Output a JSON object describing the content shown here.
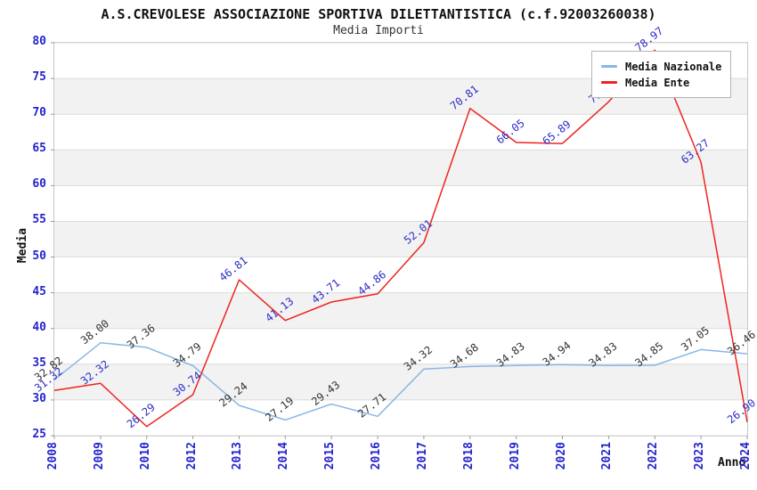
{
  "header": {
    "title": "A.S.CREVOLESE ASSOCIAZIONE SPORTIVA DILETTANTISTICA (c.f.92003260038)",
    "subtitle": "Media Importi"
  },
  "chart_data": {
    "type": "line",
    "title": "A.S.CREVOLESE ASSOCIAZIONE SPORTIVA DILETTANTISTICA (c.f.92003260038)",
    "subtitle": "Media Importi",
    "xlabel": "Anno",
    "ylabel": "Media",
    "ylim": [
      25,
      80
    ],
    "ytick_step": 5,
    "yticks": [
      25,
      30,
      35,
      40,
      45,
      50,
      55,
      60,
      65,
      70,
      75,
      80
    ],
    "grid": "horizontal-bands-alternating",
    "legend_position": "top-right",
    "categories": [
      "2008",
      "2009",
      "2010",
      "2012",
      "2013",
      "2014",
      "2015",
      "2016",
      "2017",
      "2018",
      "2019",
      "2020",
      "2021",
      "2022",
      "2023",
      "2024"
    ],
    "series": [
      {
        "name": "Media Nazionale",
        "color": "#8ab7e6",
        "label_color": "#333333",
        "values": [
          32.82,
          38.0,
          37.36,
          34.79,
          29.24,
          27.19,
          29.43,
          27.71,
          34.32,
          34.68,
          34.83,
          34.94,
          34.83,
          34.85,
          37.05,
          36.46
        ]
      },
      {
        "name": "Media Ente",
        "color": "#ee2420",
        "label_color": "#2d2dc8",
        "values": [
          31.32,
          32.32,
          26.29,
          30.74,
          46.81,
          41.13,
          43.71,
          44.86,
          52.01,
          70.81,
          66.05,
          65.89,
          71.73,
          78.97,
          63.27,
          26.9
        ]
      }
    ],
    "colors": {
      "axis_tick_text": "#2424cc",
      "band_gray": "#f2f2f2",
      "band_white": "#ffffff",
      "gridline": "#dcdcdc",
      "plot_border": "#c8c8c8",
      "title_text": "#111111"
    }
  }
}
